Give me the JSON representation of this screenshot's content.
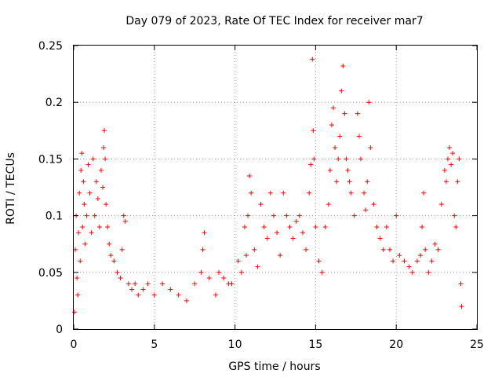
{
  "chart_data": {
    "type": "scatter",
    "title": "Day 079 of 2023, Rate Of TEC Index for receiver mar7",
    "xlabel": "GPS time / hours",
    "ylabel": "ROTI / TECUs",
    "xlim": [
      0,
      25
    ],
    "ylim": [
      0,
      0.25
    ],
    "x_ticks": [
      0,
      5,
      10,
      15,
      20,
      25
    ],
    "x_tick_labels": [
      "0",
      "5",
      "10",
      "15",
      "20",
      "25"
    ],
    "y_ticks": [
      0,
      0.05,
      0.1,
      0.15,
      0.2,
      0.25
    ],
    "y_tick_labels": [
      "0",
      "0.05",
      "0.1",
      "0.15",
      "0.2",
      "0.25"
    ],
    "grid": true,
    "legend": "none",
    "marker": "plus",
    "color": "#ff0000",
    "series": [
      {
        "values_note_excluded": true,
        "points": [
          [
            0.05,
            0.015
          ],
          [
            0.1,
            0.07
          ],
          [
            0.15,
            0.1
          ],
          [
            0.2,
            0.045
          ],
          [
            0.25,
            0.03
          ],
          [
            0.3,
            0.085
          ],
          [
            0.35,
            0.12
          ],
          [
            0.4,
            0.06
          ],
          [
            0.45,
            0.14
          ],
          [
            0.5,
            0.155
          ],
          [
            0.55,
            0.09
          ],
          [
            0.6,
            0.13
          ],
          [
            0.65,
            0.11
          ],
          [
            0.7,
            0.075
          ],
          [
            0.8,
            0.1
          ],
          [
            0.9,
            0.145
          ],
          [
            1.0,
            0.12
          ],
          [
            1.1,
            0.085
          ],
          [
            1.2,
            0.15
          ],
          [
            1.3,
            0.1
          ],
          [
            1.4,
            0.13
          ],
          [
            1.5,
            0.115
          ],
          [
            1.6,
            0.09
          ],
          [
            1.7,
            0.14
          ],
          [
            1.8,
            0.125
          ],
          [
            1.85,
            0.16
          ],
          [
            1.9,
            0.175
          ],
          [
            1.95,
            0.15
          ],
          [
            2.0,
            0.11
          ],
          [
            2.1,
            0.09
          ],
          [
            2.2,
            0.075
          ],
          [
            2.3,
            0.065
          ],
          [
            2.5,
            0.06
          ],
          [
            2.7,
            0.05
          ],
          [
            2.9,
            0.045
          ],
          [
            3.0,
            0.07
          ],
          [
            3.1,
            0.1
          ],
          [
            3.2,
            0.095
          ],
          [
            3.4,
            0.04
          ],
          [
            3.6,
            0.035
          ],
          [
            3.8,
            0.04
          ],
          [
            4.0,
            0.03
          ],
          [
            4.3,
            0.035
          ],
          [
            4.6,
            0.04
          ],
          [
            5.0,
            0.03
          ],
          [
            5.5,
            0.04
          ],
          [
            6.0,
            0.035
          ],
          [
            6.5,
            0.03
          ],
          [
            7.0,
            0.025
          ],
          [
            7.5,
            0.04
          ],
          [
            7.9,
            0.05
          ],
          [
            8.0,
            0.07
          ],
          [
            8.1,
            0.085
          ],
          [
            8.4,
            0.045
          ],
          [
            8.8,
            0.03
          ],
          [
            9.0,
            0.05
          ],
          [
            9.3,
            0.045
          ],
          [
            9.6,
            0.04
          ],
          [
            9.8,
            0.04
          ],
          [
            10.2,
            0.06
          ],
          [
            10.4,
            0.05
          ],
          [
            10.6,
            0.09
          ],
          [
            10.7,
            0.065
          ],
          [
            10.8,
            0.1
          ],
          [
            10.9,
            0.135
          ],
          [
            11.0,
            0.12
          ],
          [
            11.2,
            0.07
          ],
          [
            11.4,
            0.055
          ],
          [
            11.6,
            0.11
          ],
          [
            11.8,
            0.09
          ],
          [
            12.0,
            0.08
          ],
          [
            12.2,
            0.12
          ],
          [
            12.4,
            0.1
          ],
          [
            12.6,
            0.085
          ],
          [
            12.8,
            0.065
          ],
          [
            13.0,
            0.12
          ],
          [
            13.2,
            0.1
          ],
          [
            13.4,
            0.09
          ],
          [
            13.6,
            0.08
          ],
          [
            13.8,
            0.095
          ],
          [
            14.0,
            0.1
          ],
          [
            14.2,
            0.085
          ],
          [
            14.4,
            0.07
          ],
          [
            14.6,
            0.12
          ],
          [
            14.7,
            0.145
          ],
          [
            14.8,
            0.238
          ],
          [
            14.85,
            0.175
          ],
          [
            14.9,
            0.15
          ],
          [
            15.0,
            0.09
          ],
          [
            15.2,
            0.06
          ],
          [
            15.4,
            0.05
          ],
          [
            15.6,
            0.09
          ],
          [
            15.8,
            0.11
          ],
          [
            15.9,
            0.14
          ],
          [
            16.0,
            0.18
          ],
          [
            16.1,
            0.195
          ],
          [
            16.2,
            0.16
          ],
          [
            16.3,
            0.13
          ],
          [
            16.4,
            0.15
          ],
          [
            16.5,
            0.17
          ],
          [
            16.6,
            0.21
          ],
          [
            16.7,
            0.232
          ],
          [
            16.8,
            0.19
          ],
          [
            16.9,
            0.15
          ],
          [
            17.0,
            0.14
          ],
          [
            17.1,
            0.13
          ],
          [
            17.2,
            0.12
          ],
          [
            17.4,
            0.1
          ],
          [
            17.6,
            0.19
          ],
          [
            17.7,
            0.17
          ],
          [
            17.8,
            0.15
          ],
          [
            18.0,
            0.12
          ],
          [
            18.1,
            0.105
          ],
          [
            18.2,
            0.13
          ],
          [
            18.3,
            0.2
          ],
          [
            18.4,
            0.16
          ],
          [
            18.6,
            0.11
          ],
          [
            18.8,
            0.09
          ],
          [
            19.0,
            0.08
          ],
          [
            19.2,
            0.07
          ],
          [
            19.4,
            0.09
          ],
          [
            19.6,
            0.07
          ],
          [
            19.8,
            0.06
          ],
          [
            20.0,
            0.1
          ],
          [
            20.2,
            0.065
          ],
          [
            20.5,
            0.06
          ],
          [
            20.8,
            0.055
          ],
          [
            21.0,
            0.05
          ],
          [
            21.3,
            0.06
          ],
          [
            21.5,
            0.065
          ],
          [
            21.6,
            0.09
          ],
          [
            21.7,
            0.12
          ],
          [
            21.8,
            0.07
          ],
          [
            22.0,
            0.05
          ],
          [
            22.2,
            0.06
          ],
          [
            22.4,
            0.075
          ],
          [
            22.6,
            0.07
          ],
          [
            22.8,
            0.11
          ],
          [
            23.0,
            0.14
          ],
          [
            23.1,
            0.13
          ],
          [
            23.2,
            0.15
          ],
          [
            23.3,
            0.16
          ],
          [
            23.4,
            0.145
          ],
          [
            23.5,
            0.155
          ],
          [
            23.6,
            0.1
          ],
          [
            23.7,
            0.09
          ],
          [
            23.8,
            0.13
          ],
          [
            23.9,
            0.15
          ],
          [
            24.0,
            0.04
          ],
          [
            24.05,
            0.02
          ]
        ]
      }
    ]
  }
}
